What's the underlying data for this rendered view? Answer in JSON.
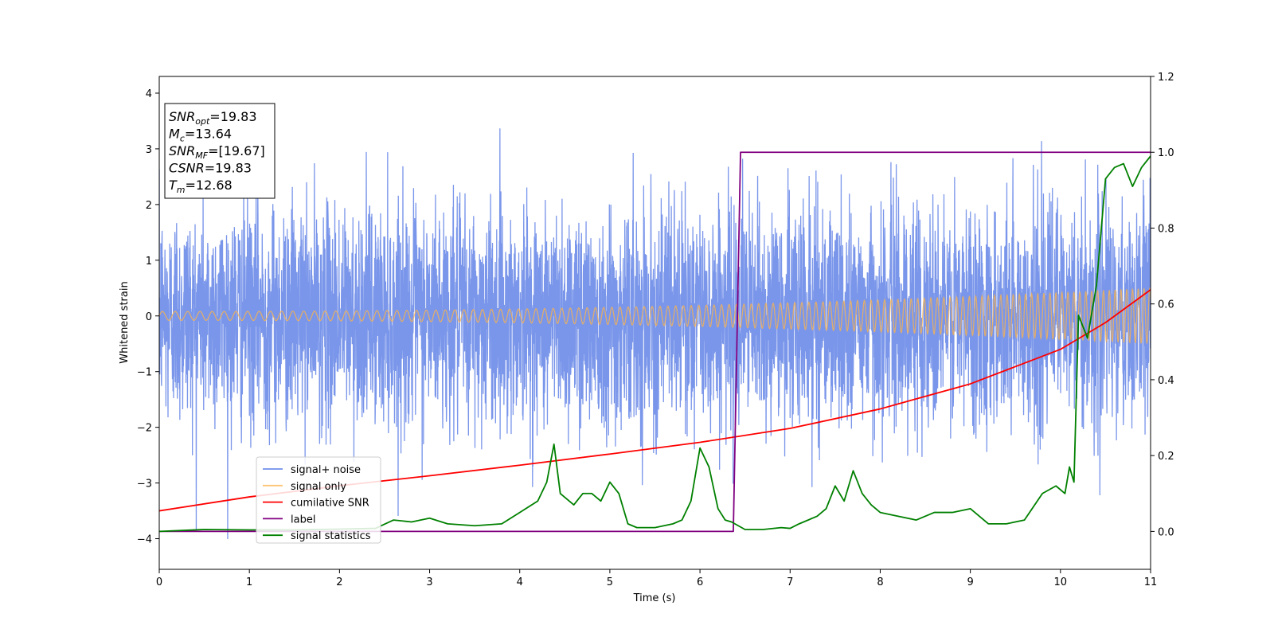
{
  "chart_data": {
    "type": "line",
    "title": "",
    "xlabel": "Time (s)",
    "ylabel": "Whitened strain",
    "xlim": [
      0,
      11
    ],
    "ylim_left": [
      -4.55,
      4.3
    ],
    "ylim_right": [
      -0.1,
      1.2
    ],
    "x_ticks": [
      0,
      1,
      2,
      3,
      4,
      5,
      6,
      7,
      8,
      9,
      10,
      11
    ],
    "y_ticks_left": [
      -4,
      -3,
      -2,
      -1,
      0,
      1,
      2,
      3,
      4
    ],
    "y_ticks_right": [
      0.0,
      0.2,
      0.4,
      0.6,
      0.8,
      1.0,
      1.2
    ],
    "grid": false,
    "legend_position": "lower-left",
    "info_box": [
      {
        "sym": "SNR",
        "sub": "opt",
        "rest": "=19.83"
      },
      {
        "sym": "M",
        "sub": "c",
        "rest": "=13.64"
      },
      {
        "sym": "SNR",
        "sub": "MF",
        "rest": "=[19.67]"
      },
      {
        "sym": "CSNR",
        "sub": "",
        "rest": "=19.83"
      },
      {
        "sym": "T",
        "sub": "m",
        "rest": "=12.68"
      }
    ],
    "series": [
      {
        "name": "signal+ noise",
        "axis": "left",
        "color": "#4169e1",
        "kind": "noise",
        "description_values": {
          "std": 0.95,
          "min": -4.15,
          "max": 3.9
        }
      },
      {
        "name": "signal only",
        "axis": "left",
        "color": "#ffb347",
        "kind": "chirp",
        "amplitude_start": 0.08,
        "amplitude_end": 0.5
      },
      {
        "name": "cumilative SNR",
        "axis": "left",
        "color": "#ff0000",
        "x": [
          0,
          1,
          2,
          3,
          4,
          5,
          6,
          7,
          8,
          9,
          10,
          10.5,
          11
        ],
        "y": [
          -3.5,
          -3.25,
          -3.05,
          -2.87,
          -2.68,
          -2.48,
          -2.27,
          -2.02,
          -1.67,
          -1.22,
          -0.6,
          -0.12,
          0.47
        ]
      },
      {
        "name": "label",
        "axis": "right",
        "color": "#800080",
        "x": [
          0,
          6.37,
          6.45,
          11
        ],
        "y": [
          0.0,
          0.0,
          1.0,
          1.0
        ]
      },
      {
        "name": "signal statistics",
        "axis": "right",
        "color": "#008000",
        "x": [
          0,
          0.5,
          1.0,
          1.5,
          2.0,
          2.4,
          2.6,
          2.8,
          3.0,
          3.2,
          3.5,
          3.8,
          4.0,
          4.2,
          4.3,
          4.38,
          4.45,
          4.6,
          4.7,
          4.8,
          4.9,
          5.0,
          5.1,
          5.2,
          5.3,
          5.5,
          5.7,
          5.8,
          5.9,
          6.0,
          6.1,
          6.2,
          6.28,
          6.35,
          6.5,
          6.7,
          6.9,
          7.0,
          7.1,
          7.3,
          7.4,
          7.5,
          7.6,
          7.7,
          7.8,
          7.9,
          8.0,
          8.2,
          8.4,
          8.6,
          8.8,
          9.0,
          9.2,
          9.4,
          9.6,
          9.8,
          9.95,
          10.05,
          10.1,
          10.15,
          10.2,
          10.3,
          10.4,
          10.5,
          10.6,
          10.7,
          10.8,
          10.9,
          11.0
        ],
        "y": [
          0.0,
          0.005,
          0.004,
          0.004,
          0.006,
          0.008,
          0.03,
          0.025,
          0.035,
          0.02,
          0.015,
          0.02,
          0.05,
          0.08,
          0.13,
          0.23,
          0.1,
          0.07,
          0.1,
          0.1,
          0.08,
          0.13,
          0.1,
          0.02,
          0.01,
          0.01,
          0.02,
          0.03,
          0.08,
          0.22,
          0.17,
          0.06,
          0.03,
          0.025,
          0.005,
          0.005,
          0.01,
          0.008,
          0.02,
          0.04,
          0.06,
          0.12,
          0.08,
          0.16,
          0.1,
          0.07,
          0.05,
          0.04,
          0.03,
          0.05,
          0.05,
          0.06,
          0.02,
          0.02,
          0.03,
          0.1,
          0.12,
          0.1,
          0.17,
          0.13,
          0.57,
          0.51,
          0.65,
          0.93,
          0.96,
          0.97,
          0.91,
          0.96,
          0.99
        ]
      }
    ]
  }
}
